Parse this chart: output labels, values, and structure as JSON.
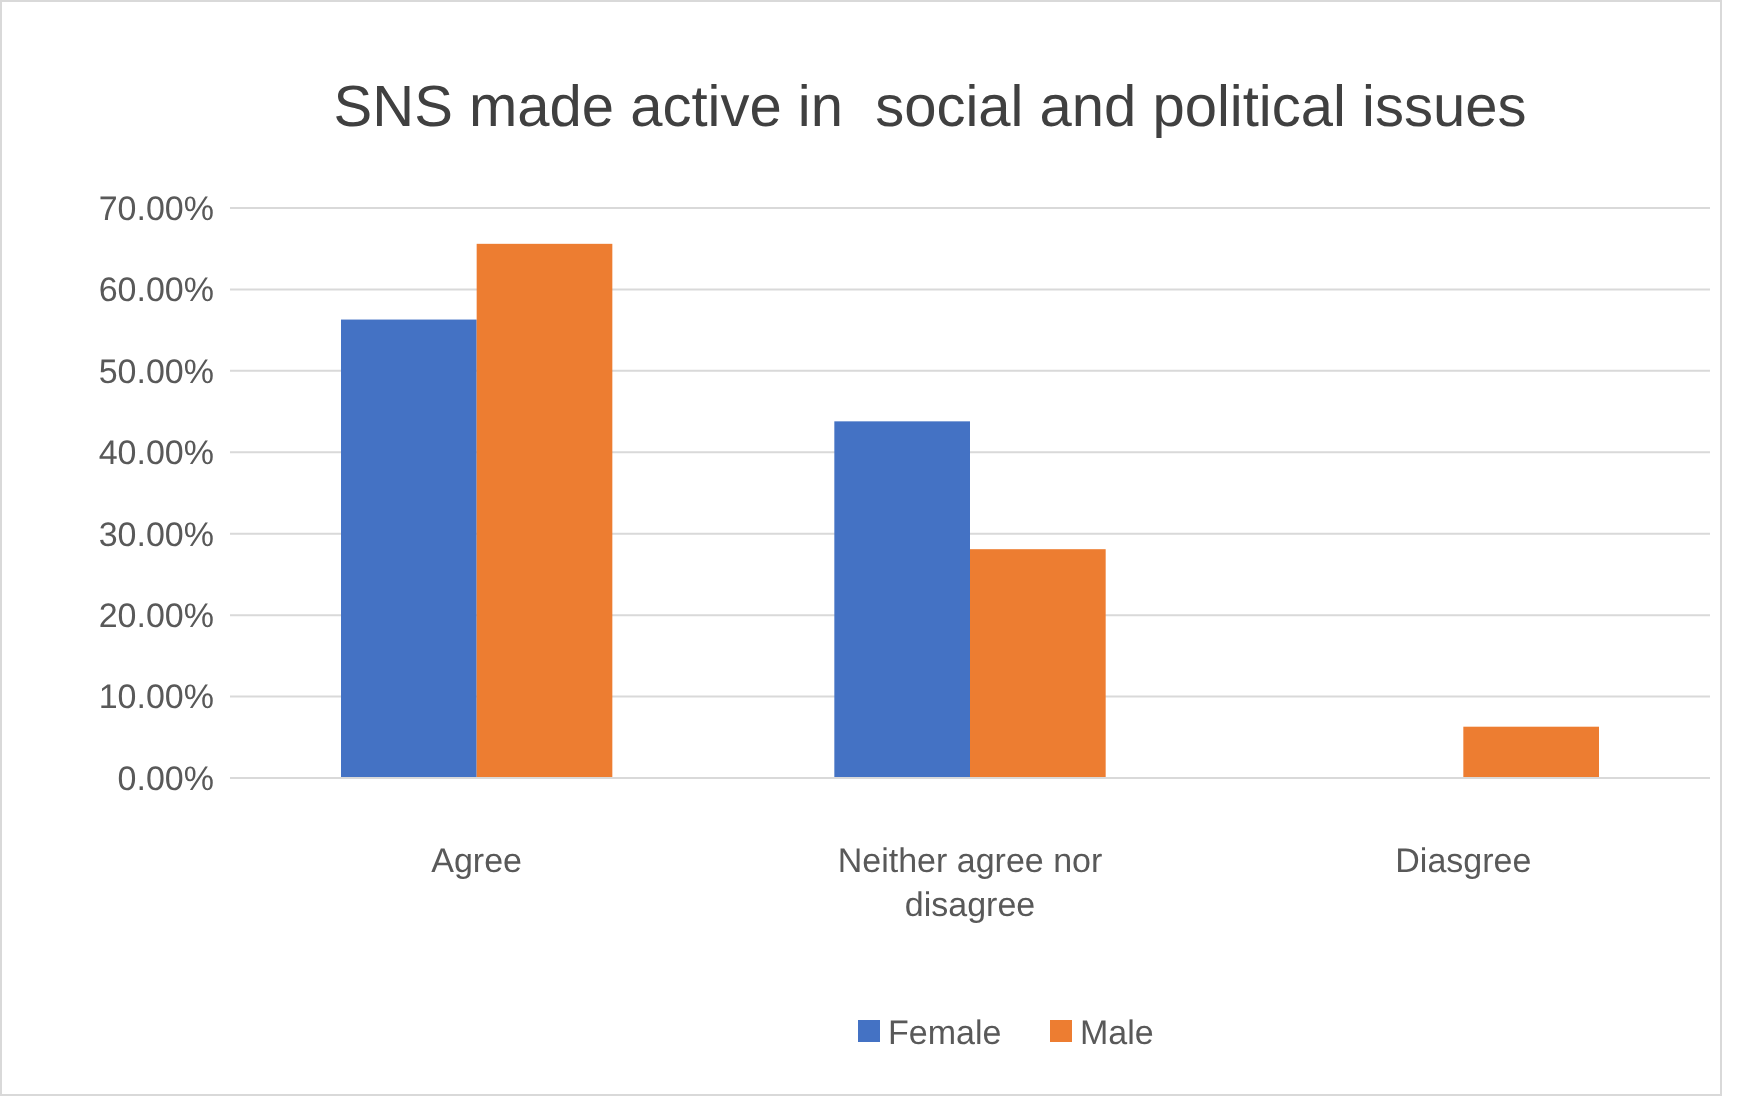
{
  "chart_data": {
    "type": "bar",
    "title": "SNS made active in  social and political issues",
    "categories": [
      "Agree",
      "Neither agree nor disagree",
      "Diasgree"
    ],
    "series": [
      {
        "name": "Female",
        "color": "#4472c4",
        "values": [
          56.3,
          43.8,
          0
        ]
      },
      {
        "name": "Male",
        "color": "#ed7d31",
        "values": [
          65.6,
          28.1,
          6.3
        ]
      }
    ],
    "ylim": [
      0,
      70
    ],
    "yticks": [
      {
        "value": 0,
        "label": "0.00%"
      },
      {
        "value": 10,
        "label": "10.00%"
      },
      {
        "value": 20,
        "label": "20.00%"
      },
      {
        "value": 30,
        "label": "30.00%"
      },
      {
        "value": 40,
        "label": "40.00%"
      },
      {
        "value": 50,
        "label": "50.00%"
      },
      {
        "value": 60,
        "label": "60.00%"
      },
      {
        "value": 70,
        "label": "70.00%"
      }
    ],
    "grid": "y",
    "legend": "bottom"
  }
}
